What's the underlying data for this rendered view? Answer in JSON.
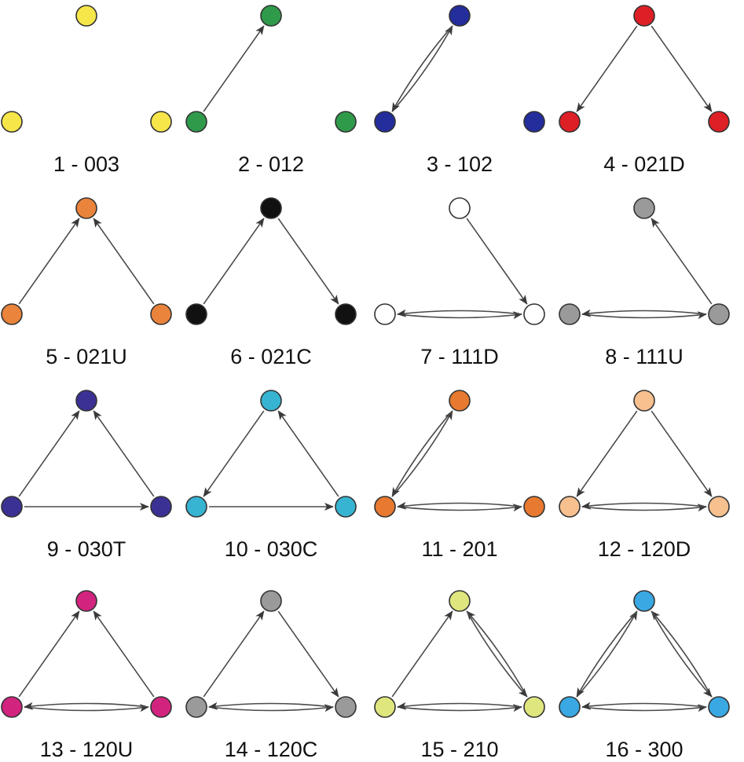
{
  "triads": [
    {
      "id": "003",
      "label": "1 - 003",
      "color": "#f7e64a",
      "edges": []
    },
    {
      "id": "012",
      "label": "2 - 012",
      "color": "#2f9a4a",
      "edges": [
        {
          "from": "L",
          "to": "T"
        }
      ]
    },
    {
      "id": "102",
      "label": "3 - 102",
      "color": "#232d9c",
      "edges": [
        {
          "from": "L",
          "to": "T",
          "mutual": true
        }
      ]
    },
    {
      "id": "021D",
      "label": "4 - 021D",
      "color": "#dd1f26",
      "edges": [
        {
          "from": "T",
          "to": "L"
        },
        {
          "from": "T",
          "to": "R"
        }
      ]
    },
    {
      "id": "021U",
      "label": "5 - 021U",
      "color": "#ea833c",
      "edges": [
        {
          "from": "L",
          "to": "T"
        },
        {
          "from": "R",
          "to": "T"
        }
      ]
    },
    {
      "id": "021C",
      "label": "6 - 021C",
      "color": "#111111",
      "edges": [
        {
          "from": "L",
          "to": "T"
        },
        {
          "from": "T",
          "to": "R"
        }
      ]
    },
    {
      "id": "111D",
      "label": "7 - 111D",
      "color": "#ffffff",
      "edges": [
        {
          "from": "T",
          "to": "R"
        },
        {
          "from": "L",
          "to": "R",
          "mutual": true
        }
      ]
    },
    {
      "id": "111U",
      "label": "8 - 111U",
      "color": "#9a9a9a",
      "edges": [
        {
          "from": "R",
          "to": "T"
        },
        {
          "from": "L",
          "to": "R",
          "mutual": true
        }
      ]
    },
    {
      "id": "030T",
      "label": "9 - 030T",
      "color": "#3b3195",
      "edges": [
        {
          "from": "L",
          "to": "T"
        },
        {
          "from": "R",
          "to": "T"
        },
        {
          "from": "L",
          "to": "R"
        }
      ]
    },
    {
      "id": "030C",
      "label": "10 - 030C",
      "color": "#37b4d2",
      "edges": [
        {
          "from": "T",
          "to": "L"
        },
        {
          "from": "R",
          "to": "T"
        },
        {
          "from": "L",
          "to": "R"
        }
      ]
    },
    {
      "id": "201",
      "label": "11 - 201",
      "color": "#e77930",
      "edges": [
        {
          "from": "L",
          "to": "T",
          "mutual": true
        },
        {
          "from": "L",
          "to": "R",
          "mutual": true
        }
      ]
    },
    {
      "id": "120D",
      "label": "12 - 120D",
      "color": "#f7c08f",
      "edges": [
        {
          "from": "T",
          "to": "L"
        },
        {
          "from": "T",
          "to": "R"
        },
        {
          "from": "L",
          "to": "R",
          "mutual": true
        }
      ]
    },
    {
      "id": "120U",
      "label": "13 - 120U",
      "color": "#d2237f",
      "edges": [
        {
          "from": "L",
          "to": "T"
        },
        {
          "from": "R",
          "to": "T"
        },
        {
          "from": "L",
          "to": "R",
          "mutual": true
        }
      ]
    },
    {
      "id": "120C",
      "label": "14 - 120C",
      "color": "#9a9a9a",
      "edges": [
        {
          "from": "L",
          "to": "T"
        },
        {
          "from": "T",
          "to": "R"
        },
        {
          "from": "L",
          "to": "R",
          "mutual": true
        }
      ]
    },
    {
      "id": "210",
      "label": "15 - 210",
      "color": "#dfe67e",
      "edges": [
        {
          "from": "L",
          "to": "T"
        },
        {
          "from": "R",
          "to": "T",
          "mutual": true
        },
        {
          "from": "L",
          "to": "R",
          "mutual": true
        }
      ]
    },
    {
      "id": "300",
      "label": "16 - 300",
      "color": "#3aa8e2",
      "edges": [
        {
          "from": "L",
          "to": "T",
          "mutual": true
        },
        {
          "from": "R",
          "to": "T",
          "mutual": true
        },
        {
          "from": "L",
          "to": "R",
          "mutual": true
        }
      ]
    }
  ]
}
